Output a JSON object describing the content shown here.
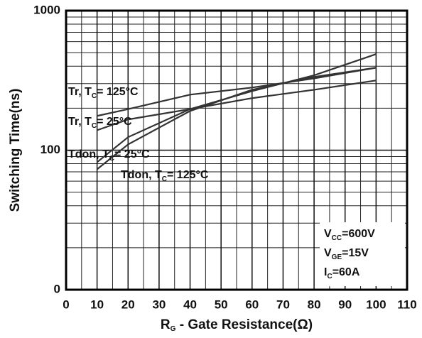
{
  "chart_data": {
    "type": "line",
    "y_label": "Switching Time(ns)",
    "x_label": {
      "main": "R",
      "sub": "G",
      "rest": " - Gate Resistance(Ω)"
    },
    "x": [
      10,
      20,
      40,
      60,
      80,
      100
    ],
    "series": [
      {
        "color": "#333333",
        "values": [
          176,
          197,
          250,
          281,
          327,
          390
        ]
      },
      {
        "color": "#333333",
        "values": [
          139,
          166,
          197,
          236,
          271,
          316
        ]
      },
      {
        "color": "#333333",
        "values": [
          82,
          124,
          197,
          265,
          344,
          488
        ]
      },
      {
        "color": "#333333",
        "values": [
          73,
          110,
          191,
          271,
          335,
          390
        ]
      }
    ],
    "annotations": [
      {
        "main": "Tr, T",
        "sub": "C",
        "rest": "= 125°C"
      },
      {
        "main": "Tr, T",
        "sub": "C",
        "rest": "= 25°C"
      },
      {
        "main": "Tdon, T",
        "sub": "C",
        "rest": "= 25°C"
      },
      {
        "main": "Tdon, T",
        "sub": "C",
        "rest": "= 125°C"
      }
    ],
    "conditions": [
      {
        "main": "V",
        "sub": "CC",
        "rest": "=600V"
      },
      {
        "main": "V",
        "sub": "GE",
        "rest": "=15V"
      },
      {
        "main": "I",
        "sub": "C",
        "rest": "=60A"
      }
    ],
    "xlim": [
      0,
      110
    ],
    "xticks": [
      0,
      10,
      20,
      30,
      40,
      50,
      60,
      70,
      80,
      90,
      100,
      110
    ],
    "ylim": [
      10,
      1000
    ],
    "yticks": [
      {
        "value": 10,
        "label": "0"
      },
      100,
      1000
    ],
    "log_y": true,
    "grid": true
  }
}
